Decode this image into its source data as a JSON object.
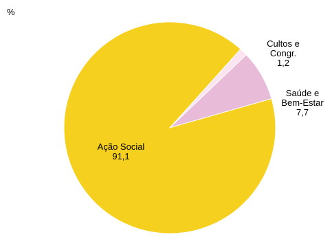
{
  "chart_data": {
    "type": "pie",
    "title": "",
    "unit_label": "%",
    "slices": [
      {
        "label_lines": [
          "Cultos e",
          "Congr.",
          "1,2"
        ],
        "value": 1.2,
        "color": "#fbe4ef"
      },
      {
        "label_lines": [
          "Saúde e",
          "Bem-Estar",
          "7,7"
        ],
        "value": 7.7,
        "color": "#e8bcd8"
      },
      {
        "label_lines": [
          "Ação Social",
          "91,1"
        ],
        "value": 91.1,
        "color": "#f5d01e"
      }
    ]
  }
}
